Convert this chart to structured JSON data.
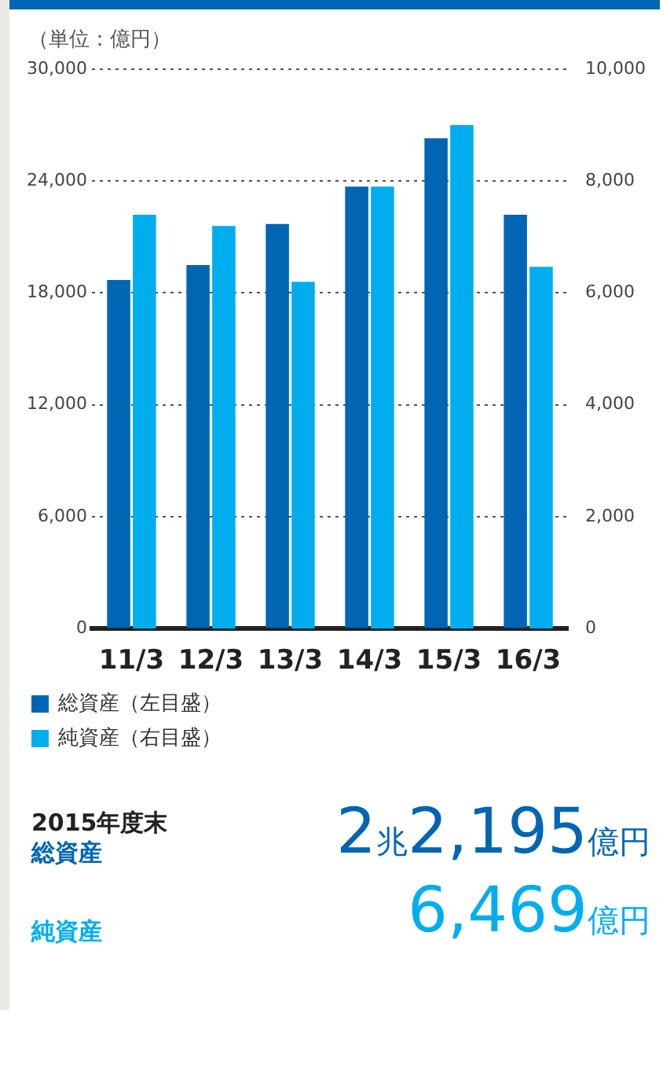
{
  "chart_data": {
    "type": "bar",
    "title": "（単位：億円）",
    "categories": [
      "11/3",
      "12/3",
      "13/3",
      "14/3",
      "15/3",
      "16/3"
    ],
    "series": [
      {
        "name": "総資産（左目盛）",
        "color": "#0066b3",
        "values": [
          18700,
          19500,
          21700,
          23700,
          26300,
          22195
        ]
      },
      {
        "name": "純資産（右目盛）",
        "color": "#00aeef",
        "axis": "y2",
        "values": [
          7400,
          7200,
          6200,
          7900,
          9000,
          6469
        ]
      }
    ],
    "ylim": [
      0,
      30000
    ],
    "yticks": [
      0,
      {
        "value": 6000,
        "label": "6,000"
      },
      {
        "value": 12000,
        "label": "12,000"
      },
      {
        "value": 18000,
        "label": "18,000"
      },
      {
        "value": 24000,
        "label": "24,000"
      },
      {
        "value": 30000,
        "label": "30,000"
      }
    ],
    "y2lim": [
      0,
      10000
    ],
    "y2ticks": [
      0,
      {
        "value": 2000,
        "label": "2,000"
      },
      {
        "value": 4000,
        "label": "4,000"
      },
      {
        "value": 6000,
        "label": "6,000"
      },
      {
        "value": 8000,
        "label": "8,000"
      },
      {
        "value": 10000,
        "label": "10,000"
      }
    ],
    "grid": "y",
    "legend": "bottom left",
    "annotations": [
      "2015年度末",
      "総資産",
      "2兆2,195億円",
      "純資産",
      "6,469億円"
    ]
  }
}
